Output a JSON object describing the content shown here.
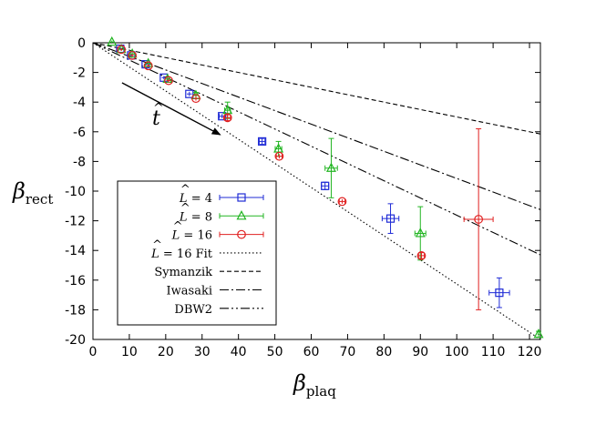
{
  "chart_data": {
    "type": "scatter",
    "title": "",
    "xlabel": "β",
    "xlabel_sub": "plaq",
    "ylabel": "β",
    "ylabel_sub": "rect",
    "xlim": [
      0,
      123
    ],
    "ylim": [
      -20,
      0
    ],
    "xticks": [
      0,
      10,
      20,
      30,
      40,
      50,
      60,
      70,
      80,
      90,
      100,
      110,
      120
    ],
    "yticks": [
      0,
      -2,
      -4,
      -6,
      -8,
      -10,
      -12,
      -14,
      -16,
      -18,
      -20
    ],
    "annotation": {
      "text": "t",
      "hat": "^",
      "arrow_from": [
        8,
        -2.7
      ],
      "arrow_to": [
        35,
        -6.2
      ]
    },
    "series": [
      {
        "name": "L = 16 Fit",
        "name_hat": "^",
        "name_rest": " = 16 Fit",
        "kind": "line",
        "style": "dotted",
        "color": "#000000",
        "x": [
          0,
          123
        ],
        "y": [
          0,
          -20
        ]
      },
      {
        "name": "Symanzik",
        "kind": "line",
        "style": "dashed",
        "color": "#000000",
        "x": [
          0,
          123
        ],
        "y": [
          0,
          -6.15
        ]
      },
      {
        "name": "Iwasaki",
        "kind": "line",
        "style": "dashdot",
        "color": "#000000",
        "x": [
          0,
          123
        ],
        "y": [
          0,
          -11.25
        ]
      },
      {
        "name": "DBW2",
        "kind": "line",
        "style": "dashdotdot",
        "color": "#000000",
        "x": [
          0,
          123
        ],
        "y": [
          0,
          -14.3
        ]
      },
      {
        "name": "L = 4",
        "name_hat": "^",
        "name_rest": " = 4",
        "kind": "points",
        "marker": "square",
        "color": "#1f2bd6",
        "points": [
          {
            "x": 7.5,
            "y": -0.4,
            "xerr": 0.5,
            "yerr": 0.1
          },
          {
            "x": 10.5,
            "y": -0.85,
            "xerr": 0.5,
            "yerr": 0.1
          },
          {
            "x": 14.5,
            "y": -1.45,
            "xerr": 0.5,
            "yerr": 0.1
          },
          {
            "x": 19.5,
            "y": -2.35,
            "xerr": 0.6,
            "yerr": 0.12
          },
          {
            "x": 26.5,
            "y": -3.45,
            "xerr": 0.7,
            "yerr": 0.15
          },
          {
            "x": 35.5,
            "y": -4.95,
            "xerr": 0.8,
            "yerr": 0.15
          },
          {
            "x": 46.5,
            "y": -6.65,
            "xerr": 0.8,
            "yerr": 0.2
          },
          {
            "x": 63.8,
            "y": -9.65,
            "xerr": 1.0,
            "yerr": 0.25
          },
          {
            "x": 81.8,
            "y": -11.85,
            "xerr": 2.3,
            "yerr": 1.0
          },
          {
            "x": 111.7,
            "y": -16.85,
            "xerr": 2.8,
            "yerr": 1.0
          }
        ]
      },
      {
        "name": "L = 8",
        "name_hat": "^",
        "name_rest": " = 8",
        "kind": "points",
        "marker": "triangle",
        "color": "#22b522",
        "points": [
          {
            "x": 5.2,
            "y": 0.05,
            "xerr": 0.4,
            "yerr": 0.1
          },
          {
            "x": 7.8,
            "y": -0.45,
            "xerr": 0.4,
            "yerr": 0.1
          },
          {
            "x": 10.8,
            "y": -0.75,
            "xerr": 0.5,
            "yerr": 0.1
          },
          {
            "x": 15.2,
            "y": -1.4,
            "xerr": 0.5,
            "yerr": 0.1
          },
          {
            "x": 20.5,
            "y": -2.45,
            "xerr": 0.6,
            "yerr": 0.15
          },
          {
            "x": 28.3,
            "y": -3.55,
            "xerr": 0.7,
            "yerr": 0.2
          },
          {
            "x": 37.0,
            "y": -4.55,
            "xerr": 0.8,
            "yerr": 0.55
          },
          {
            "x": 51.0,
            "y": -7.15,
            "xerr": 0.9,
            "yerr": 0.5
          },
          {
            "x": 65.5,
            "y": -8.45,
            "xerr": 1.7,
            "yerr": 2.0
          },
          {
            "x": 90.0,
            "y": -12.85,
            "xerr": 1.5,
            "yerr": 1.8
          },
          {
            "x": 122.5,
            "y": -19.65,
            "xerr": 0.3,
            "yerr": 0.2
          }
        ]
      },
      {
        "name": "L = 16",
        "name_hat": "^",
        "name_rest": " = 16",
        "kind": "points",
        "marker": "circle",
        "color": "#e02020",
        "points": [
          {
            "x": 7.8,
            "y": -0.45,
            "xerr": 0.4,
            "yerr": 0.1
          },
          {
            "x": 10.8,
            "y": -0.85,
            "xerr": 0.5,
            "yerr": 0.1
          },
          {
            "x": 15.2,
            "y": -1.55,
            "xerr": 0.5,
            "yerr": 0.1
          },
          {
            "x": 20.8,
            "y": -2.55,
            "xerr": 0.6,
            "yerr": 0.15
          },
          {
            "x": 28.3,
            "y": -3.75,
            "xerr": 0.7,
            "yerr": 0.15
          },
          {
            "x": 37.0,
            "y": -5.05,
            "xerr": 0.8,
            "yerr": 0.2
          },
          {
            "x": 51.2,
            "y": -7.65,
            "xerr": 0.8,
            "yerr": 0.15
          },
          {
            "x": 68.5,
            "y": -10.7,
            "xerr": 0.8,
            "yerr": 0.15
          },
          {
            "x": 90.3,
            "y": -14.35,
            "xerr": 0.8,
            "yerr": 0.2
          },
          {
            "x": 106.0,
            "y": -11.9,
            "xerr": 4.0,
            "yerr": 6.1
          }
        ]
      }
    ],
    "legend": {
      "position": "bottom-left",
      "entries": [
        {
          "label_hat": "^",
          "label_var": "L",
          "label_rest": " = 4",
          "ref": "L = 4"
        },
        {
          "label_hat": "^",
          "label_var": "L",
          "label_rest": " = 8",
          "ref": "L = 8"
        },
        {
          "label_hat": "^",
          "label_var": "L",
          "label_rest": " = 16",
          "ref": "L = 16"
        },
        {
          "label_hat": "^",
          "label_var": "L",
          "label_rest": " = 16 Fit",
          "ref": "L = 16 Fit"
        },
        {
          "label_hat": "",
          "label_var": "",
          "label_rest": "Symanzik",
          "ref": "Symanzik"
        },
        {
          "label_hat": "",
          "label_var": "",
          "label_rest": "Iwasaki",
          "ref": "Iwasaki"
        },
        {
          "label_hat": "",
          "label_var": "",
          "label_rest": "DBW2",
          "ref": "DBW2"
        }
      ]
    }
  }
}
